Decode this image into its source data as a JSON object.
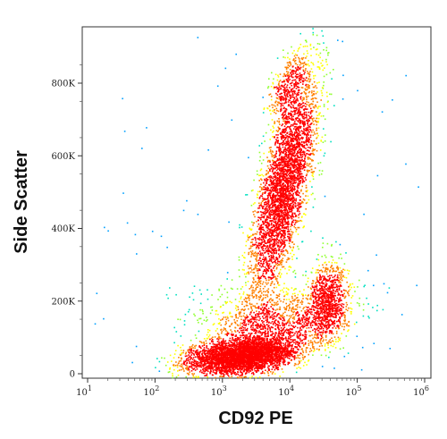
{
  "chart_data": {
    "type": "scatter",
    "plot_style": "flow cytometry density dot plot",
    "title": "",
    "xlabel": "CD92 PE",
    "ylabel": "Side Scatter",
    "x_scale": "log",
    "xlim": [
      10,
      1000000
    ],
    "x_ticks": [
      {
        "base": "10",
        "exp": "1",
        "value": 10
      },
      {
        "base": "10",
        "exp": "2",
        "value": 100
      },
      {
        "base": "10",
        "exp": "3",
        "value": 1000
      },
      {
        "base": "10",
        "exp": "4",
        "value": 10000
      },
      {
        "base": "10",
        "exp": "5",
        "value": 100000
      },
      {
        "base": "10",
        "exp": "6",
        "value": 1000000
      }
    ],
    "y_scale": "linear",
    "ylim": [
      0,
      950000
    ],
    "y_ticks": [
      {
        "label": "0",
        "value": 0
      },
      {
        "label": "200K",
        "value": 200000
      },
      {
        "label": "400K",
        "value": 400000
      },
      {
        "label": "600K",
        "value": 600000
      },
      {
        "label": "800K",
        "value": 800000
      }
    ],
    "populations": [
      {
        "x_center": 2000,
        "y_center": 50000,
        "density": "highest",
        "description": "low side scatter, CD92 low"
      },
      {
        "x_center": 8000,
        "y_center": 520000,
        "density": "high",
        "description": "high side scatter, CD92 bright"
      },
      {
        "x_center": 35000,
        "y_center": 200000,
        "density": "medium",
        "description": "intermediate side scatter, CD92 bright"
      }
    ],
    "density_colors": [
      "#0000ff",
      "#00a0ff",
      "#00e0c0",
      "#90ff30",
      "#ffff00",
      "#ff8000",
      "#ff0000"
    ],
    "grid": false,
    "legend": "none"
  }
}
